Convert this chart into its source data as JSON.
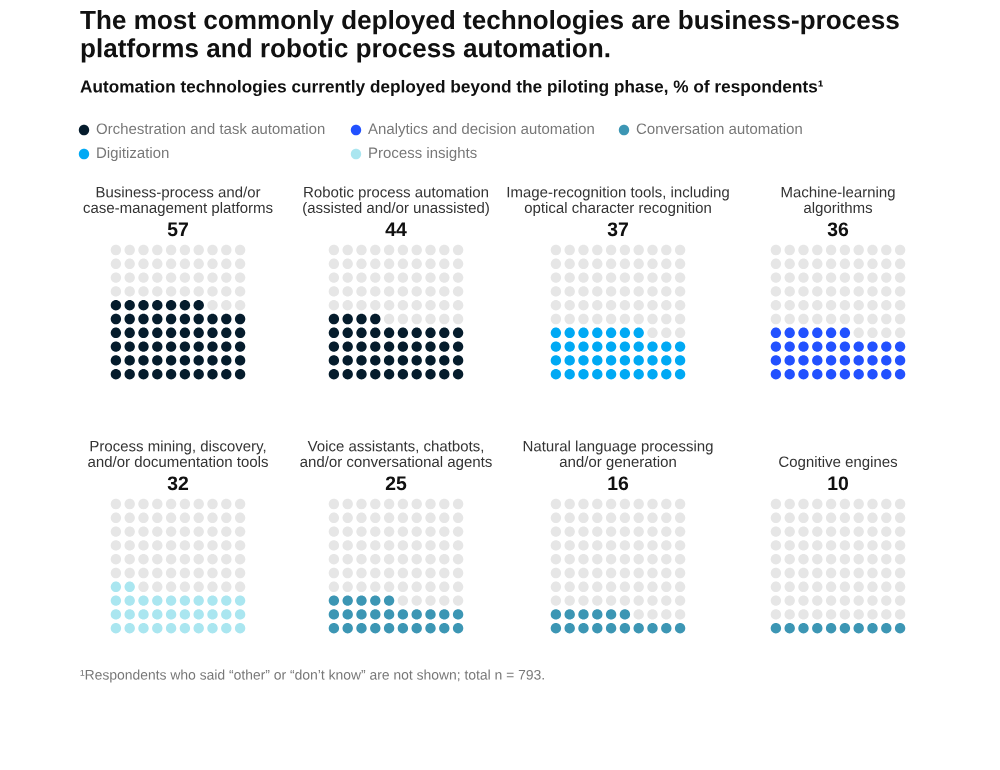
{
  "chart_data": {
    "type": "other",
    "title": "The most commonly deployed technologies are business-process platforms and robotic process automation.",
    "subtitle": "Automation technologies currently deployed beyond the piloting phase, % of respondents¹",
    "categories": [
      "Business-process and/or\ncase-management platforms",
      "Robotic process automation\n(assisted and/or unassisted)",
      "Image-recognition tools, including\noptical character recognition",
      "Machine-learning\nalgorithms",
      "Process mining, discovery,\nand/or documentation tools",
      "Voice assistants, chatbots,\nand/or conversational agents",
      "Natural language processing\nand/or generation",
      "Cognitive engines"
    ],
    "series": [
      {
        "name": "Orchestration and task automation",
        "color": "#051c2c",
        "values": [
          57,
          44,
          null,
          null,
          null,
          null,
          null,
          null
        ]
      },
      {
        "name": "Analytics and decision automation",
        "color": "#2251ff",
        "values": [
          null,
          null,
          null,
          36,
          null,
          null,
          null,
          null
        ]
      },
      {
        "name": "Conversation automation",
        "color": "#3c96b4",
        "values": [
          null,
          null,
          null,
          null,
          null,
          25,
          16,
          10
        ]
      },
      {
        "name": "Digitization",
        "color": "#00a9f4",
        "values": [
          null,
          null,
          37,
          null,
          null,
          null,
          null,
          null
        ]
      },
      {
        "name": "Process insights",
        "color": "#aae6f0",
        "values": [
          null,
          null,
          null,
          null,
          32,
          null,
          null,
          null
        ]
      }
    ],
    "data_labels": true,
    "legend": "top left",
    "annotations": [
      "¹Respondents who said “other” or “don’t know” are not shown; total n = 793."
    ]
  }
}
